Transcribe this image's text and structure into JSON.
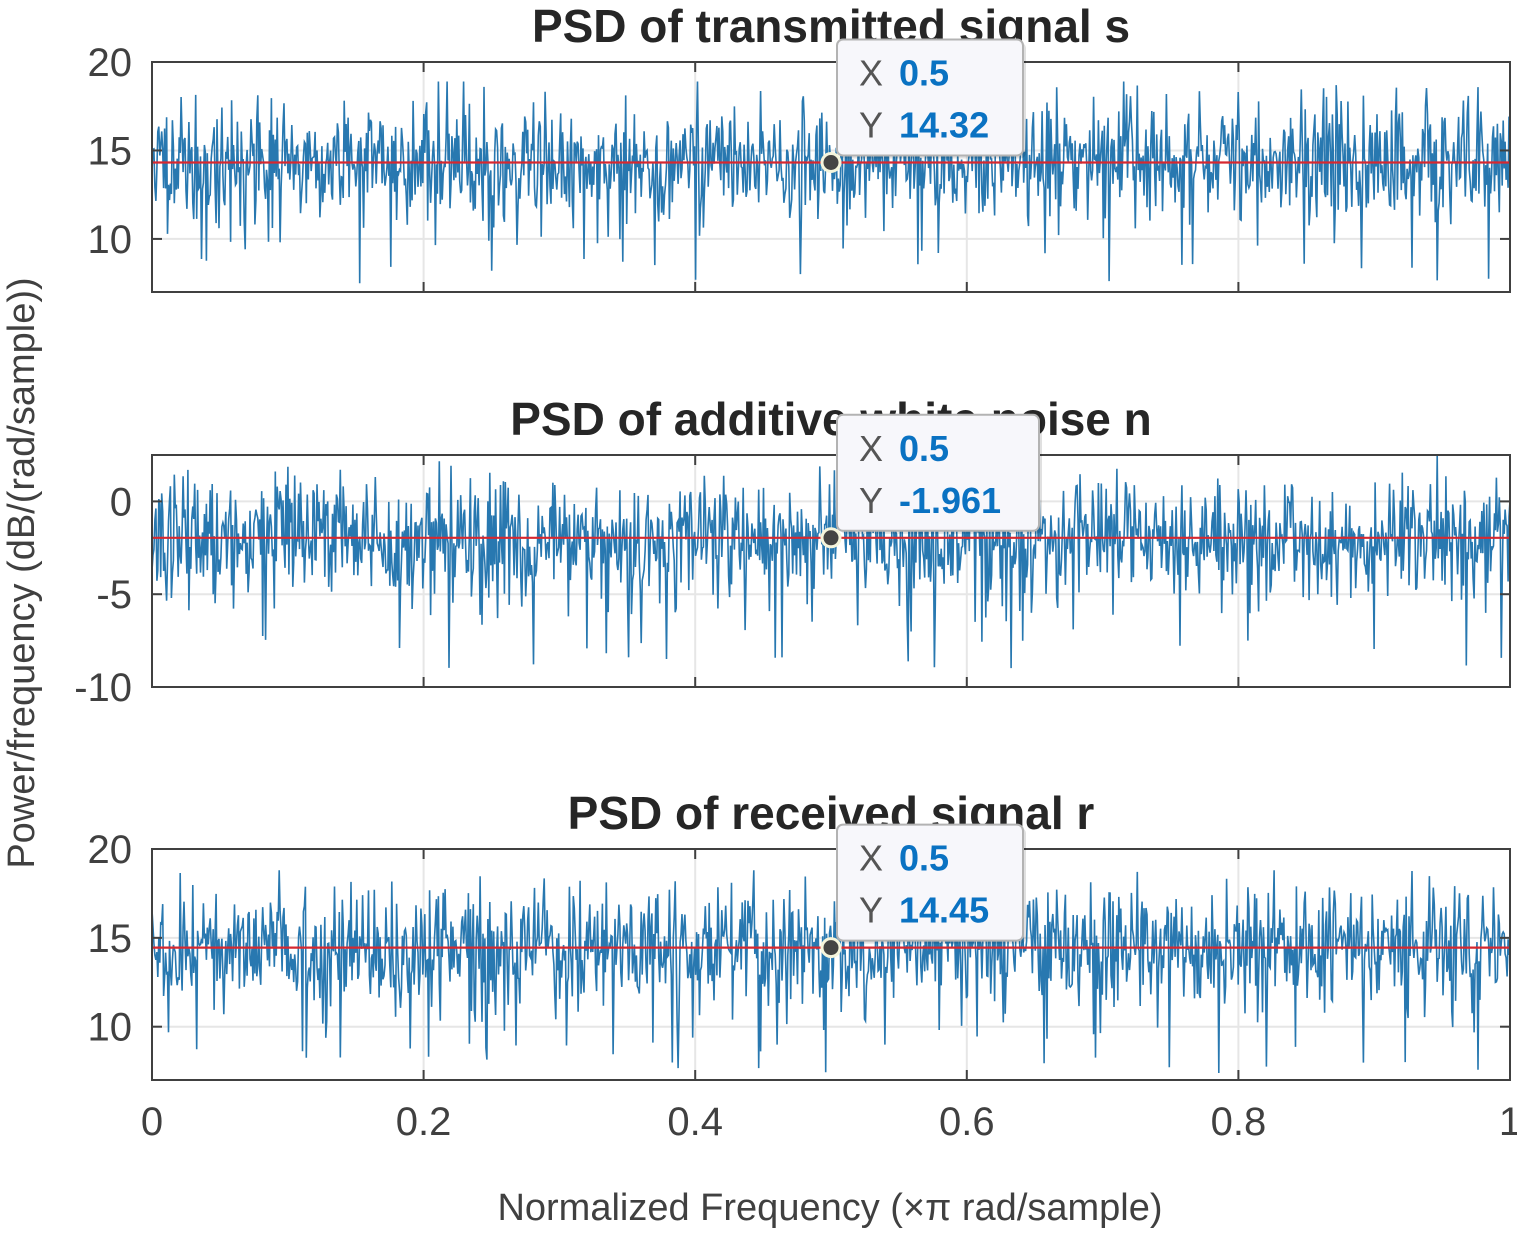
{
  "figure": {
    "ylabel": "Power/frequency (dB/(rad/sample))",
    "xlabel": "Normalized Frequency  (×π rad/sample)"
  },
  "colors": {
    "signal": "#2878b0",
    "mean_line": "#d62830",
    "grid": "#e6e6e6",
    "axes": "#404040",
    "tooltip_value": "#0a72c2"
  },
  "chart_data": [
    {
      "type": "line",
      "title": "PSD of transmitted signal s",
      "xlim": [
        0,
        1
      ],
      "ylim": [
        7,
        20
      ],
      "yticks": [
        10,
        15,
        20
      ],
      "ytick_labels": [
        "10",
        "15",
        "20"
      ],
      "xticks": [
        0,
        0.2,
        0.4,
        0.6,
        0.8,
        1
      ],
      "xtick_labels": [],
      "series": [
        {
          "name": "PSD",
          "mean": 14.32,
          "spread": 1.6,
          "min": 7.3,
          "max": 18.9,
          "seed": 11
        },
        {
          "name": "Mean",
          "y": 14.32
        }
      ],
      "datatip": {
        "x_label": "X",
        "x": "0.5",
        "y_label": "Y",
        "y": "14.32",
        "x_value": 0.5,
        "y_value": 14.32
      }
    },
    {
      "type": "line",
      "title": "PSD of additive white noise n",
      "xlim": [
        0,
        1
      ],
      "ylim": [
        -10,
        2.5
      ],
      "yticks": [
        -10,
        -5,
        0
      ],
      "ytick_labels": [
        "-10",
        "-5",
        "0"
      ],
      "xticks": [
        0,
        0.2,
        0.4,
        0.6,
        0.8,
        1
      ],
      "xtick_labels": [],
      "series": [
        {
          "name": "PSD",
          "mean": -1.961,
          "spread": 1.6,
          "min": -9.0,
          "max": 2.5,
          "seed": 37
        },
        {
          "name": "Mean",
          "y": -1.961
        }
      ],
      "datatip": {
        "x_label": "X",
        "x": "0.5",
        "y_label": "Y",
        "y": "-1.961",
        "x_value": 0.5,
        "y_value": -1.961
      }
    },
    {
      "type": "line",
      "title": "PSD of received signal r",
      "xlim": [
        0,
        1
      ],
      "ylim": [
        7,
        20
      ],
      "yticks": [
        10,
        15,
        20
      ],
      "ytick_labels": [
        "10",
        "15",
        "20"
      ],
      "xticks": [
        0,
        0.2,
        0.4,
        0.6,
        0.8,
        1
      ],
      "xtick_labels": [
        "0",
        "0.2",
        "0.4",
        "0.6",
        "0.8",
        "1"
      ],
      "series": [
        {
          "name": "PSD",
          "mean": 14.45,
          "spread": 1.6,
          "min": 7.2,
          "max": 18.8,
          "seed": 73
        },
        {
          "name": "Mean",
          "y": 14.45
        }
      ],
      "datatip": {
        "x_label": "X",
        "x": "0.5",
        "y_label": "Y",
        "y": "14.45",
        "x_value": 0.5,
        "y_value": 14.45
      }
    }
  ]
}
